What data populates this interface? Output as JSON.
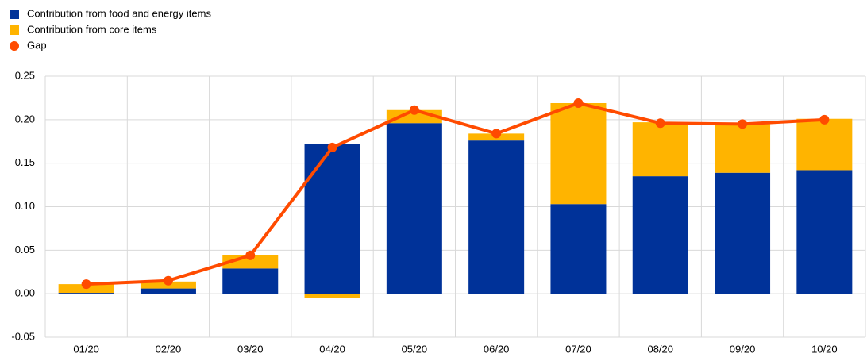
{
  "chart_data": {
    "type": "bar-line",
    "categories": [
      "01/20",
      "02/20",
      "03/20",
      "04/20",
      "05/20",
      "06/20",
      "07/20",
      "08/20",
      "09/20",
      "10/20"
    ],
    "series": [
      {
        "name": "Contribution from food and energy items",
        "type": "bar",
        "color": "#003299",
        "values": [
          0.001,
          0.006,
          0.029,
          0.172,
          0.196,
          0.176,
          0.103,
          0.135,
          0.139,
          0.142
        ]
      },
      {
        "name": "Contribution from core items",
        "type": "bar",
        "color": "#ffb400",
        "values": [
          0.01,
          0.008,
          0.015,
          -0.005,
          0.015,
          0.008,
          0.116,
          0.062,
          0.056,
          0.059
        ]
      },
      {
        "name": "Gap",
        "type": "line",
        "color": "#ff4b00",
        "values": [
          0.011,
          0.015,
          0.044,
          0.168,
          0.211,
          0.184,
          0.219,
          0.196,
          0.195,
          0.2
        ]
      }
    ],
    "stacked": true,
    "ylim": [
      -0.05,
      0.25
    ],
    "yticks": [
      {
        "value": -0.05,
        "label": "-0.05"
      },
      {
        "value": 0,
        "label": "0.00"
      },
      {
        "value": 0.05,
        "label": "0.05"
      },
      {
        "value": 0.1,
        "label": "0.10"
      },
      {
        "value": 0.15,
        "label": "0.15"
      },
      {
        "value": 0.2,
        "label": "0.20"
      },
      {
        "value": 0.25,
        "label": "0.25"
      }
    ],
    "grid": true,
    "legend": "top-left"
  }
}
